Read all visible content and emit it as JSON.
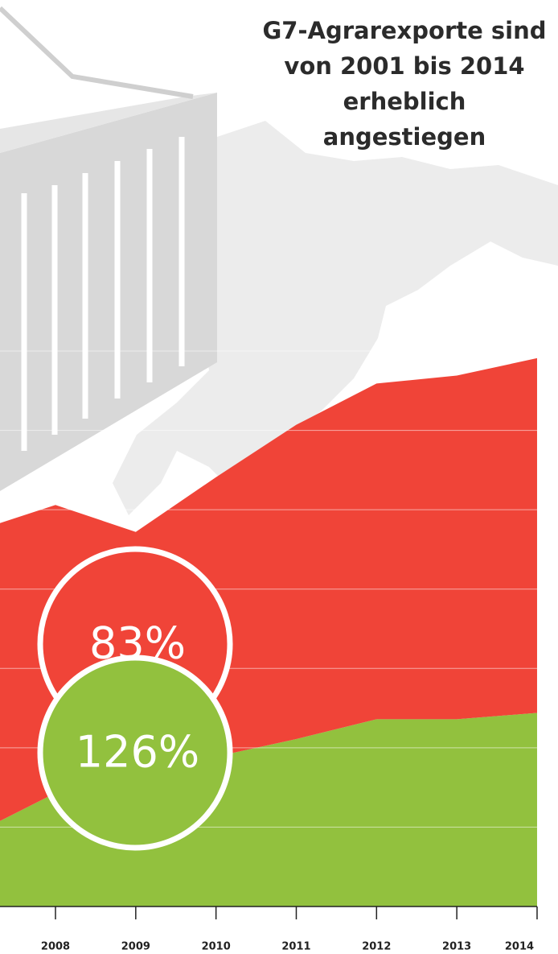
{
  "chart_data": {
    "type": "stacked-area",
    "title_lines": [
      "G7-Agrarexporte sind",
      "von 2001 bis 2014",
      "erheblich",
      "angestiegen"
    ],
    "categories": [
      null,
      "2008",
      "2009",
      "2010",
      "2011",
      "2012",
      "2013",
      "2014"
    ],
    "series": [
      {
        "color": "#92c13e",
        "values": [
          0.92,
          1.43,
          1.68,
          1.89,
          2.11,
          2.36,
          2.36,
          2.44
        ]
      },
      {
        "color": "#f04438",
        "values": [
          3.81,
          3.63,
          3.04,
          3.52,
          3.96,
          4.23,
          4.33,
          4.47
        ]
      }
    ],
    "ylim": [
      0,
      7
    ],
    "yticks": [
      1,
      2,
      3,
      4,
      5,
      6,
      7
    ],
    "grid": true,
    "annotations": [
      "83%",
      "126%"
    ]
  }
}
